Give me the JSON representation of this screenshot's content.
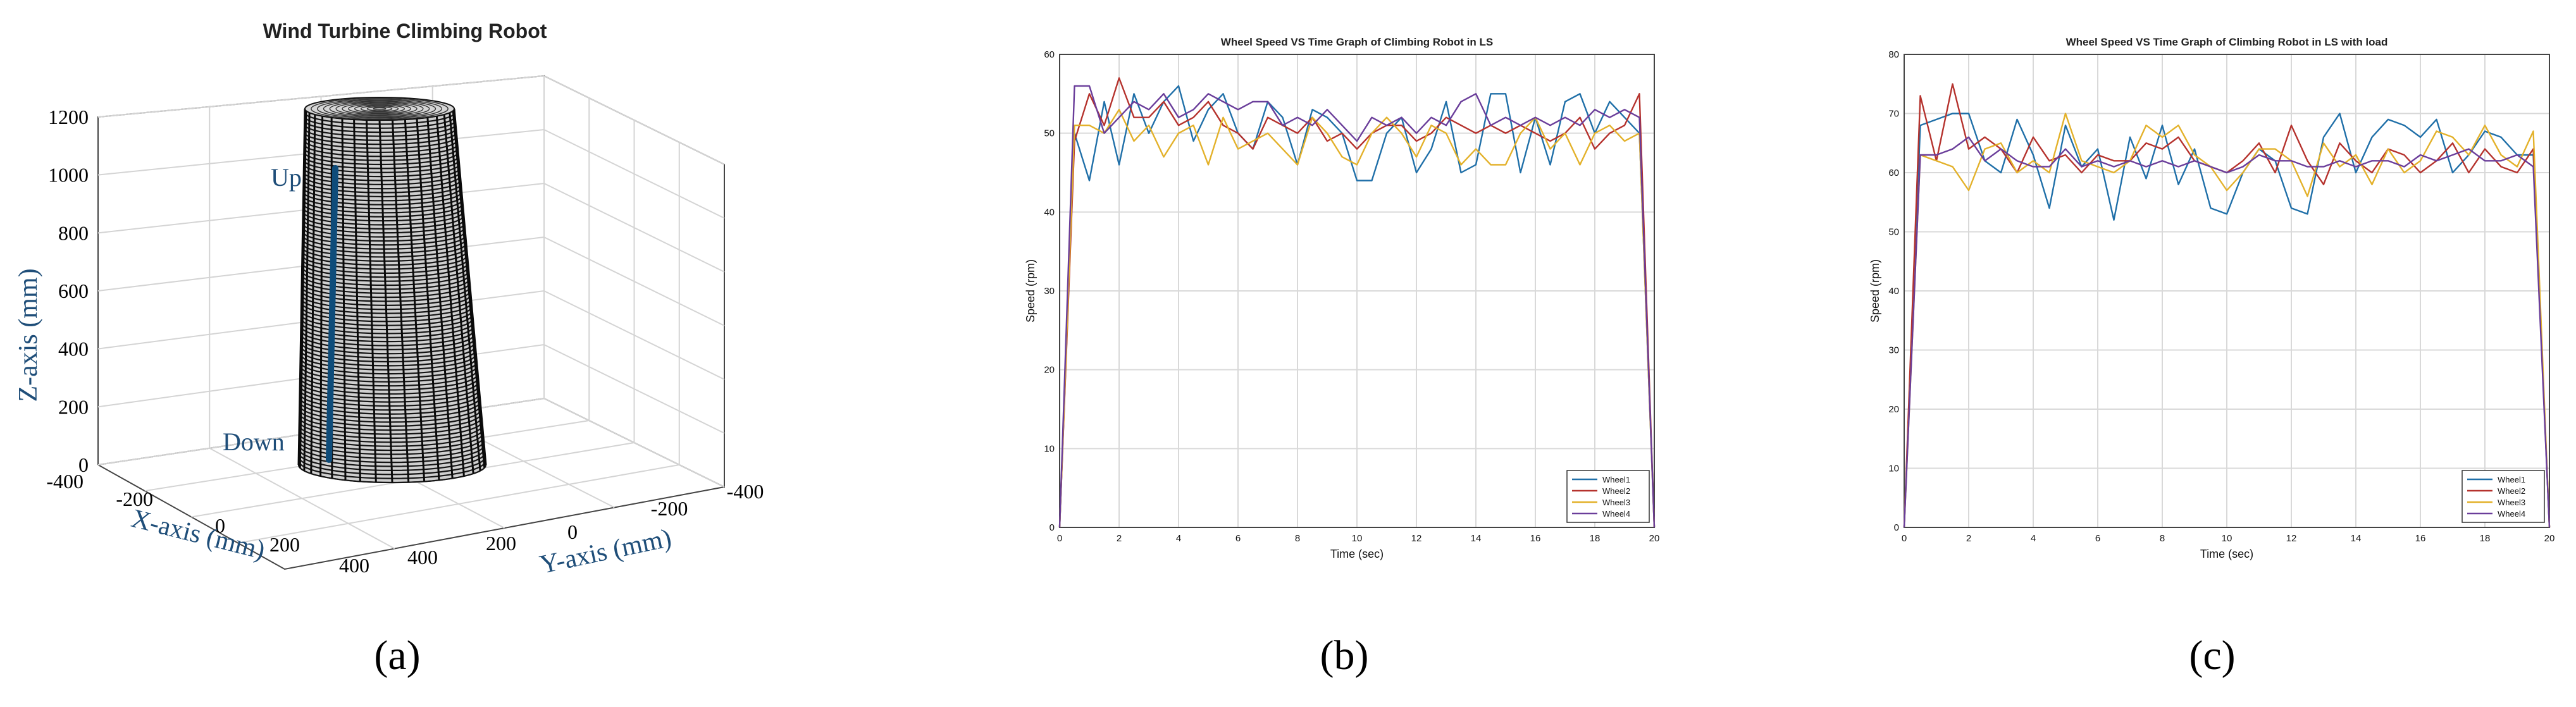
{
  "colors": {
    "wheel1": "#1f6fa8",
    "wheel2": "#b5322d",
    "wheel3": "#e3b12a",
    "wheel4": "#6a3d9a",
    "accent": "#0e4c7a"
  },
  "chart_data": [
    {
      "type": "surface3d",
      "title": "Wind Turbine Climbing Robot",
      "xlabel": "X-axis (mm)",
      "ylabel": "Y-axis (mm)",
      "zlabel": "Z-axis (mm)",
      "xticks": [
        "-400",
        "-200",
        "0",
        "200",
        "400"
      ],
      "yticks": [
        "-400",
        "-200",
        "0",
        "200",
        "400"
      ],
      "zticks": [
        "0",
        "200",
        "400",
        "600",
        "800",
        "1000",
        "1200"
      ],
      "zlim": [
        0,
        1200
      ],
      "annotations": {
        "up": "Up",
        "down": "Down"
      },
      "path": {
        "z_start": 0,
        "z_end": 1000
      },
      "subfig": "(a)"
    },
    {
      "type": "line",
      "title": "Wheel Speed VS Time Graph of Climbing Robot in LS",
      "xlabel": "Time (sec)",
      "ylabel": "Speed (rpm)",
      "xlim": [
        0,
        20
      ],
      "ylim": [
        0,
        60
      ],
      "xticks": [
        "0",
        "2",
        "4",
        "6",
        "8",
        "10",
        "12",
        "14",
        "16",
        "18",
        "20"
      ],
      "yticks": [
        "0",
        "10",
        "20",
        "30",
        "40",
        "50",
        "60"
      ],
      "x": [
        0,
        0.5,
        1,
        1.5,
        2,
        2.5,
        3,
        3.5,
        4,
        4.5,
        5,
        5.5,
        6,
        6.5,
        7,
        7.5,
        8,
        8.5,
        9,
        9.5,
        10,
        10.5,
        11,
        11.5,
        12,
        12.5,
        13,
        13.5,
        14,
        14.5,
        15,
        15.5,
        16,
        16.5,
        17,
        17.5,
        18,
        18.5,
        19,
        19.5,
        20
      ],
      "series": [
        {
          "name": "Wheel1",
          "values": [
            0,
            50,
            44,
            54,
            46,
            55,
            50,
            54,
            56,
            49,
            53,
            55,
            50,
            48,
            54,
            52,
            46,
            53,
            52,
            50,
            44,
            44,
            50,
            52,
            45,
            48,
            54,
            45,
            46,
            55,
            55,
            45,
            52,
            46,
            54,
            55,
            50,
            54,
            52,
            50,
            0
          ]
        },
        {
          "name": "Wheel2",
          "values": [
            0,
            49,
            55,
            51,
            57,
            52,
            52,
            54,
            51,
            52,
            54,
            51,
            50,
            48,
            52,
            51,
            50,
            52,
            49,
            50,
            48,
            50,
            51,
            51,
            49,
            50,
            52,
            51,
            50,
            51,
            50,
            51,
            50,
            49,
            50,
            52,
            48,
            50,
            51,
            55,
            0
          ]
        },
        {
          "name": "Wheel3",
          "values": [
            0,
            51,
            51,
            50,
            53,
            49,
            51,
            47,
            50,
            51,
            46,
            52,
            48,
            49,
            50,
            48,
            46,
            52,
            50,
            47,
            46,
            50,
            52,
            50,
            47,
            51,
            50,
            46,
            48,
            46,
            46,
            50,
            52,
            48,
            50,
            46,
            50,
            51,
            49,
            50,
            0
          ]
        },
        {
          "name": "Wheel4",
          "values": [
            0,
            56,
            56,
            50,
            52,
            54,
            53,
            55,
            52,
            53,
            55,
            54,
            53,
            54,
            54,
            51,
            52,
            51,
            53,
            51,
            49,
            52,
            51,
            52,
            50,
            52,
            51,
            54,
            55,
            51,
            52,
            51,
            52,
            51,
            52,
            51,
            53,
            52,
            53,
            52,
            0
          ]
        }
      ],
      "legend": "bottom-right",
      "subfig": "(b)"
    },
    {
      "type": "line",
      "title": "Wheel Speed VS Time Graph of Climbing Robot in LS with load",
      "xlabel": "Time (sec)",
      "ylabel": "Speed (rpm)",
      "xlim": [
        0,
        20
      ],
      "ylim": [
        0,
        80
      ],
      "xticks": [
        "0",
        "2",
        "4",
        "6",
        "8",
        "10",
        "12",
        "14",
        "16",
        "18",
        "20"
      ],
      "yticks": [
        "0",
        "10",
        "20",
        "30",
        "40",
        "50",
        "60",
        "70",
        "80"
      ],
      "x": [
        0,
        0.5,
        1,
        1.5,
        2,
        2.5,
        3,
        3.5,
        4,
        4.5,
        5,
        5.5,
        6,
        6.5,
        7,
        7.5,
        8,
        8.5,
        9,
        9.5,
        10,
        10.5,
        11,
        11.5,
        12,
        12.5,
        13,
        13.5,
        14,
        14.5,
        15,
        15.5,
        16,
        16.5,
        17,
        17.5,
        18,
        18.5,
        19,
        19.5,
        20
      ],
      "series": [
        {
          "name": "Wheel1",
          "values": [
            0,
            68,
            69,
            70,
            70,
            62,
            60,
            69,
            63,
            54,
            68,
            61,
            64,
            52,
            66,
            59,
            68,
            58,
            64,
            54,
            53,
            60,
            64,
            62,
            54,
            53,
            66,
            70,
            60,
            66,
            69,
            68,
            66,
            69,
            60,
            63,
            67,
            66,
            63,
            63,
            0
          ]
        },
        {
          "name": "Wheel2",
          "values": [
            0,
            73,
            62,
            75,
            64,
            66,
            64,
            60,
            66,
            62,
            63,
            60,
            63,
            62,
            62,
            65,
            64,
            66,
            62,
            61,
            60,
            62,
            65,
            60,
            68,
            62,
            58,
            65,
            62,
            60,
            64,
            63,
            60,
            62,
            65,
            60,
            64,
            61,
            60,
            64,
            0
          ]
        },
        {
          "name": "Wheel3",
          "values": [
            0,
            63,
            62,
            61,
            57,
            64,
            65,
            60,
            62,
            60,
            70,
            62,
            61,
            60,
            62,
            68,
            66,
            68,
            63,
            61,
            57,
            60,
            64,
            64,
            62,
            56,
            65,
            61,
            63,
            58,
            64,
            60,
            62,
            67,
            66,
            63,
            68,
            63,
            61,
            67,
            0
          ]
        },
        {
          "name": "Wheel4",
          "values": [
            0,
            63,
            63,
            64,
            66,
            62,
            64,
            62,
            61,
            61,
            64,
            61,
            62,
            61,
            62,
            61,
            62,
            61,
            62,
            61,
            60,
            61,
            63,
            62,
            62,
            61,
            61,
            62,
            61,
            62,
            62,
            61,
            63,
            62,
            63,
            64,
            62,
            62,
            63,
            61,
            0
          ]
        }
      ],
      "legend": "bottom-right",
      "subfig": "(c)"
    }
  ]
}
